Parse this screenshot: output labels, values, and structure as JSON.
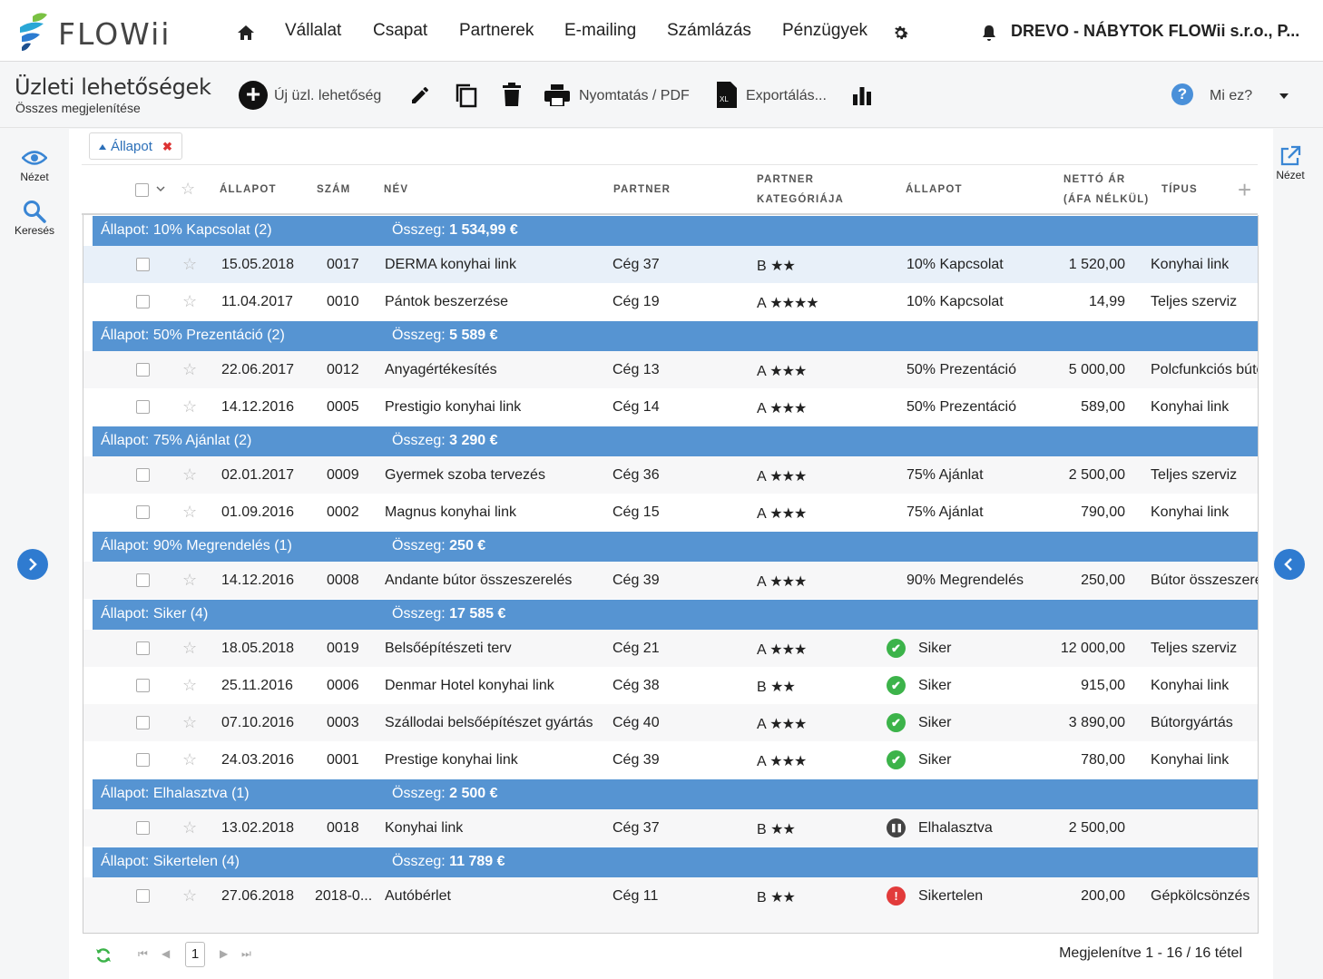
{
  "brand": {
    "name": "FLOWii",
    "colors": {
      "accent": "#2f7bd0",
      "group_row": "#5694d2",
      "success": "#3cb34a",
      "error": "#e23b3b"
    }
  },
  "nav": {
    "items": [
      "Vállalat",
      "Csapat",
      "Partnerek",
      "E-mailing",
      "Számlázás",
      "Pénzügyek"
    ],
    "company": "DREVO - NÁBYTOK FLOWii s.r.o., P..."
  },
  "page": {
    "title": "Üzleti lehetőségek",
    "subtitle": "Összes megjelenítése"
  },
  "toolbar": {
    "new_label": "Új üzl. lehetőség",
    "print_label": "Nyomtatás / PDF",
    "export_label": "Exportálás...",
    "help_label": "Mi ez?"
  },
  "sidebar": {
    "view_label": "Nézet",
    "search_label": "Keresés",
    "right_view_label": "Nézet"
  },
  "filter": {
    "label": "Állapot"
  },
  "columns": [
    "ÁLLAPOT",
    "SZÁM",
    "NÉV",
    "PARTNER",
    "PARTNER",
    "KATEGÓRIÁJA",
    "ÁLLAPOT",
    "NETTÓ ÁR",
    "(ÁFA NÉLKÜL)",
    "TÍPUS"
  ],
  "groups": [
    {
      "label": "Állapot: 10% Kapcsolat (2)",
      "sum_prefix": "Összeg:",
      "sum": "1 534,99 €",
      "rows": [
        {
          "date": "15.05.2018",
          "num": "0017",
          "name": "DERMA konyhai link",
          "partner": "Cég 37",
          "cat": "B",
          "stars": "★★",
          "status": "10% Kapcsolat",
          "icon": "",
          "price": "1 520,00",
          "type": "Konyhai link"
        },
        {
          "date": "11.04.2017",
          "num": "0010",
          "name": "Pántok beszerzése",
          "partner": "Cég 19",
          "cat": "A",
          "stars": "★★★★",
          "status": "10% Kapcsolat",
          "icon": "",
          "price": "14,99",
          "type": "Teljes szerviz"
        }
      ]
    },
    {
      "label": "Állapot: 50% Prezentáció (2)",
      "sum_prefix": "Összeg:",
      "sum": "5 589 €",
      "rows": [
        {
          "date": "22.06.2017",
          "num": "0012",
          "name": "Anyagértékesítés",
          "partner": "Cég 13",
          "cat": "A",
          "stars": "★★★",
          "status": "50% Prezentáció",
          "icon": "",
          "price": "5 000,00",
          "type": "Polcfunkciós búto"
        },
        {
          "date": "14.12.2016",
          "num": "0005",
          "name": "Prestigio konyhai link",
          "partner": "Cég 14",
          "cat": "A",
          "stars": "★★★",
          "status": "50% Prezentáció",
          "icon": "",
          "price": "589,00",
          "type": "Konyhai link"
        }
      ]
    },
    {
      "label": "Állapot: 75% Ajánlat (2)",
      "sum_prefix": "Összeg:",
      "sum": "3 290 €",
      "rows": [
        {
          "date": "02.01.2017",
          "num": "0009",
          "name": "Gyermek szoba tervezés",
          "partner": "Cég 36",
          "cat": "A",
          "stars": "★★★",
          "status": "75% Ajánlat",
          "icon": "",
          "price": "2 500,00",
          "type": "Teljes szerviz"
        },
        {
          "date": "01.09.2016",
          "num": "0002",
          "name": "Magnus konyhai link",
          "partner": "Cég 15",
          "cat": "A",
          "stars": "★★★",
          "status": "75% Ajánlat",
          "icon": "",
          "price": "790,00",
          "type": "Konyhai link"
        }
      ]
    },
    {
      "label": "Állapot: 90% Megrendelés (1)",
      "sum_prefix": "Összeg:",
      "sum": "250 €",
      "rows": [
        {
          "date": "14.12.2016",
          "num": "0008",
          "name": "Andante bútor összeszerelés",
          "partner": "Cég 39",
          "cat": "A",
          "stars": "★★★",
          "status": "90% Megrendelés",
          "icon": "",
          "price": "250,00",
          "type": "Bútor összeszerel"
        }
      ]
    },
    {
      "label": "Állapot: Siker (4)",
      "sum_prefix": "Összeg:",
      "sum": "17 585 €",
      "rows": [
        {
          "date": "18.05.2018",
          "num": "0019",
          "name": "Belsőépítészeti terv",
          "partner": "Cég 21",
          "cat": "A",
          "stars": "★★★",
          "status": "Siker",
          "icon": "check-circle-icon",
          "price": "12 000,00",
          "type": "Teljes szerviz"
        },
        {
          "date": "25.11.2016",
          "num": "0006",
          "name": "Denmar Hotel konyhai link",
          "partner": "Cég 38",
          "cat": "B",
          "stars": "★★",
          "status": "Siker",
          "icon": "check-circle-icon",
          "price": "915,00",
          "type": "Konyhai link"
        },
        {
          "date": "07.10.2016",
          "num": "0003",
          "name": "Szállodai belsőépítészet gyártás",
          "partner": "Cég 40",
          "cat": "A",
          "stars": "★★★",
          "status": "Siker",
          "icon": "check-circle-icon",
          "price": "3 890,00",
          "type": "Bútorgyártás"
        },
        {
          "date": "24.03.2016",
          "num": "0001",
          "name": "Prestige konyhai link",
          "partner": "Cég 39",
          "cat": "A",
          "stars": "★★★",
          "status": "Siker",
          "icon": "check-circle-icon",
          "price": "780,00",
          "type": "Konyhai link"
        }
      ]
    },
    {
      "label": "Állapot: Elhalasztva (1)",
      "sum_prefix": "Összeg:",
      "sum": "2 500 €",
      "rows": [
        {
          "date": "13.02.2018",
          "num": "0018",
          "name": "Konyhai link",
          "partner": "Cég 37",
          "cat": "B",
          "stars": "★★",
          "status": "Elhalasztva",
          "icon": "pause-circle-icon",
          "price": "2 500,00",
          "type": ""
        }
      ]
    },
    {
      "label": "Állapot: Sikertelen (4)",
      "sum_prefix": "Összeg:",
      "sum": "11 789 €",
      "rows": [
        {
          "date": "27.06.2018",
          "num": "2018-0...",
          "name": "Autóbérlet",
          "partner": "Cég 11",
          "cat": "B",
          "stars": "★★",
          "status": "Sikertelen",
          "icon": "error-circle-icon",
          "price": "200,00",
          "type": "Gépkölcsönzés"
        }
      ]
    }
  ],
  "pager": {
    "page": "1",
    "info": "Megjelenítve 1 - 16 / 16 tétel"
  }
}
